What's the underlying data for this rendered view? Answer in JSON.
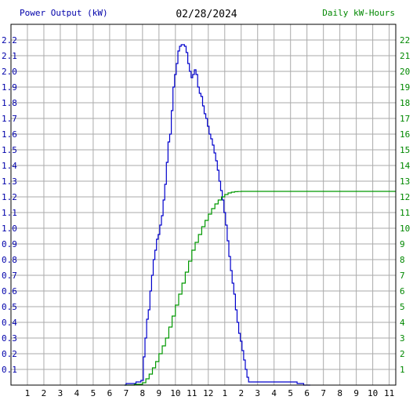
{
  "header": {
    "left_title": "Power Output (kW)",
    "center_title": "02/28/2024",
    "right_title": "Daily kW-Hours"
  },
  "colors": {
    "power_line": "#0000cc",
    "energy_line": "#009900",
    "left_axis_text": "#0000aa",
    "right_axis_text": "#008800",
    "grid": "#aaaaaa",
    "frame": "#000000"
  },
  "chart_data": {
    "type": "line",
    "title": "02/28/2024",
    "grid": true,
    "x_tick_labels": [
      "1",
      "2",
      "3",
      "4",
      "5",
      "6",
      "7",
      "8",
      "9",
      "10",
      "11",
      "12",
      "1",
      "2",
      "3",
      "4",
      "5",
      "6",
      "7",
      "8",
      "9",
      "10",
      "11"
    ],
    "x_range_hours": [
      0,
      23.4
    ],
    "y_left": {
      "label": "Power Output (kW)",
      "range": [
        0,
        2.3
      ],
      "ticks": [
        "0.1",
        "0.2",
        "0.3",
        "0.4",
        "0.5",
        "0.6",
        "0.7",
        "0.8",
        "0.9",
        "1.0",
        "1.1",
        "1.2",
        "1.3",
        "1.4",
        "1.5",
        "1.6",
        "1.7",
        "1.8",
        "1.9",
        "2.0",
        "2.1",
        "2.2"
      ]
    },
    "y_right": {
      "label": "Daily kW-Hours",
      "range": [
        0,
        23
      ],
      "ticks": [
        "1",
        "2",
        "3",
        "4",
        "5",
        "6",
        "7",
        "8",
        "9",
        "10",
        "11",
        "12",
        "13",
        "14",
        "15",
        "16",
        "17",
        "18",
        "19",
        "20",
        "21",
        "22"
      ]
    },
    "series": [
      {
        "name": "Power Output (kW)",
        "axis": "left",
        "x_hour": [
          6.9,
          7.0,
          7.3,
          7.6,
          7.9,
          8.05,
          8.15,
          8.25,
          8.35,
          8.45,
          8.55,
          8.65,
          8.75,
          8.85,
          8.95,
          9.05,
          9.15,
          9.25,
          9.35,
          9.45,
          9.55,
          9.65,
          9.75,
          9.85,
          9.95,
          10.05,
          10.15,
          10.25,
          10.35,
          10.45,
          10.55,
          10.65,
          10.75,
          10.85,
          10.95,
          11.05,
          11.15,
          11.25,
          11.35,
          11.45,
          11.55,
          11.65,
          11.75,
          11.85,
          11.95,
          12.05,
          12.15,
          12.25,
          12.35,
          12.45,
          12.55,
          12.65,
          12.75,
          12.85,
          12.95,
          13.05,
          13.15,
          13.25,
          13.35,
          13.45,
          13.55,
          13.65,
          13.75,
          13.85,
          13.95,
          14.05,
          14.15,
          14.25,
          14.35,
          14.45,
          14.55,
          14.65,
          14.75,
          14.85,
          14.95,
          15.05,
          15.15,
          15.25,
          15.35,
          15.45,
          15.55,
          15.65,
          15.75,
          15.85,
          15.95,
          16.05,
          16.15,
          16.25,
          16.35,
          16.45,
          16.55,
          16.65,
          16.75,
          16.85,
          16.95,
          17.05,
          17.15,
          17.25,
          17.4,
          17.6,
          17.8,
          18.0,
          18.2
        ],
        "values": [
          0.0,
          0.01,
          0.01,
          0.02,
          0.03,
          0.18,
          0.3,
          0.42,
          0.48,
          0.6,
          0.7,
          0.8,
          0.86,
          0.93,
          0.96,
          1.02,
          1.08,
          1.18,
          1.28,
          1.42,
          1.55,
          1.6,
          1.75,
          1.9,
          1.98,
          2.05,
          2.13,
          2.16,
          2.17,
          2.17,
          2.16,
          2.12,
          2.05,
          2.0,
          1.96,
          1.98,
          2.01,
          1.98,
          1.9,
          1.86,
          1.84,
          1.78,
          1.73,
          1.7,
          1.65,
          1.6,
          1.57,
          1.53,
          1.48,
          1.43,
          1.37,
          1.3,
          1.24,
          1.18,
          1.1,
          1.02,
          0.92,
          0.82,
          0.73,
          0.65,
          0.58,
          0.48,
          0.4,
          0.33,
          0.28,
          0.22,
          0.16,
          0.1,
          0.05,
          0.02,
          0.02,
          0.02,
          0.02,
          0.02,
          0.02,
          0.02,
          0.02,
          0.02,
          0.02,
          0.02,
          0.02,
          0.02,
          0.02,
          0.02,
          0.02,
          0.02,
          0.02,
          0.02,
          0.02,
          0.02,
          0.02,
          0.02,
          0.02,
          0.02,
          0.02,
          0.02,
          0.02,
          0.02,
          0.01,
          0.01,
          0.0,
          0.0,
          0.0
        ]
      },
      {
        "name": "Daily kW-Hours",
        "axis": "right",
        "x_hour": [
          6.9,
          7.5,
          8.0,
          8.2,
          8.4,
          8.6,
          8.8,
          9.0,
          9.2,
          9.4,
          9.6,
          9.8,
          10.0,
          10.2,
          10.4,
          10.6,
          10.8,
          11.0,
          11.2,
          11.4,
          11.6,
          11.8,
          12.0,
          12.2,
          12.4,
          12.6,
          12.8,
          13.0,
          13.2,
          13.4,
          13.6,
          13.8,
          14.0,
          14.2,
          14.4,
          14.6,
          14.8,
          15.0,
          15.2,
          15.4,
          15.6,
          15.8,
          16.0,
          16.2,
          16.4,
          16.6,
          16.8,
          17.0,
          17.5,
          18.0,
          20.0,
          23.4
        ],
        "values": [
          0.0,
          0.05,
          0.15,
          0.4,
          0.7,
          1.1,
          1.5,
          2.0,
          2.5,
          3.0,
          3.7,
          4.4,
          5.1,
          5.8,
          6.5,
          7.2,
          7.9,
          8.6,
          9.1,
          9.6,
          10.1,
          10.5,
          10.9,
          11.25,
          11.55,
          11.8,
          12.0,
          12.15,
          12.25,
          12.3,
          12.33,
          12.34,
          12.35,
          12.35,
          12.35,
          12.35,
          12.35,
          12.35,
          12.35,
          12.35,
          12.35,
          12.35,
          12.35,
          12.35,
          12.35,
          12.35,
          12.35,
          12.35,
          12.35,
          12.35,
          12.35,
          12.35
        ]
      }
    ]
  }
}
